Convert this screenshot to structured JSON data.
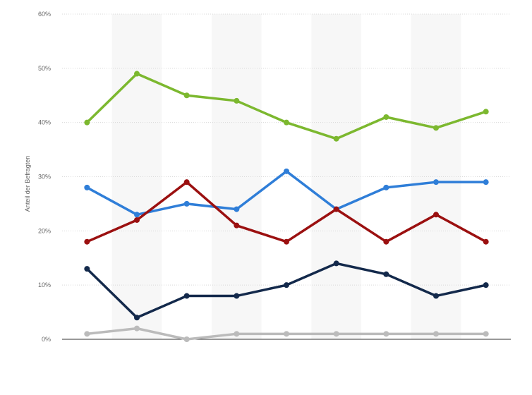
{
  "chart_data": {
    "type": "line",
    "title": "",
    "xlabel": "",
    "ylabel": "Anteil der Befragten",
    "ylim": [
      0,
      60
    ],
    "y_ticks": [
      0,
      10,
      20,
      30,
      40,
      50,
      60
    ],
    "y_tick_labels": [
      "0%",
      "10%",
      "20%",
      "30%",
      "40%",
      "50%",
      "60%"
    ],
    "grid": true,
    "legend": "none",
    "x": [
      1,
      2,
      3,
      4,
      5,
      6,
      7,
      8,
      9
    ],
    "series": [
      {
        "color": "#7cb82f",
        "values": [
          40,
          49,
          45,
          44,
          40,
          37,
          41,
          39,
          42
        ]
      },
      {
        "color": "#2f7ed8",
        "values": [
          28,
          23,
          25,
          24,
          31,
          24,
          28,
          29,
          29
        ]
      },
      {
        "color": "#9b1010",
        "values": [
          18,
          22,
          29,
          21,
          18,
          24,
          18,
          23,
          18
        ]
      },
      {
        "color": "#13294b",
        "values": [
          13,
          4,
          8,
          8,
          10,
          14,
          12,
          8,
          10
        ]
      },
      {
        "color": "#bbbbbb",
        "values": [
          1,
          2,
          0,
          1,
          1,
          1,
          1,
          1,
          1
        ]
      }
    ]
  }
}
